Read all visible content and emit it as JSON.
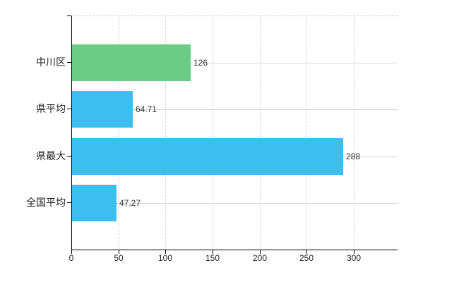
{
  "chart_data": {
    "type": "bar",
    "orientation": "horizontal",
    "title": "",
    "xlabel": "",
    "ylabel": "",
    "categories": [
      "中川区",
      "県平均",
      "県最大",
      "全国平均"
    ],
    "values": [
      126,
      64.71,
      288,
      47.27
    ],
    "value_labels": [
      "126",
      "64.71",
      "288",
      "47.27"
    ],
    "bar_colors": [
      "#6bcc86",
      "#3cbef0",
      "#3cbef0",
      "#3cbef0"
    ],
    "x_tick_values": [
      0,
      50,
      100,
      150,
      200,
      250,
      300
    ],
    "x_tick_labels": [
      "0",
      "50",
      "100",
      "150",
      "200",
      "250",
      "300"
    ],
    "xlim": [
      0,
      345.6
    ],
    "grid": true,
    "legend": false
  },
  "colors": {
    "background": "#ffffff",
    "bar_green": "#6bcc86",
    "bar_blue": "#3cbef0",
    "axis": "#000000",
    "grid_vertical": "#d4d4d4",
    "grid_horizontal": "#d6d6d6",
    "plot_top_border": "#cccccc",
    "value_text": "#333333",
    "tick_text": "#222222"
  }
}
